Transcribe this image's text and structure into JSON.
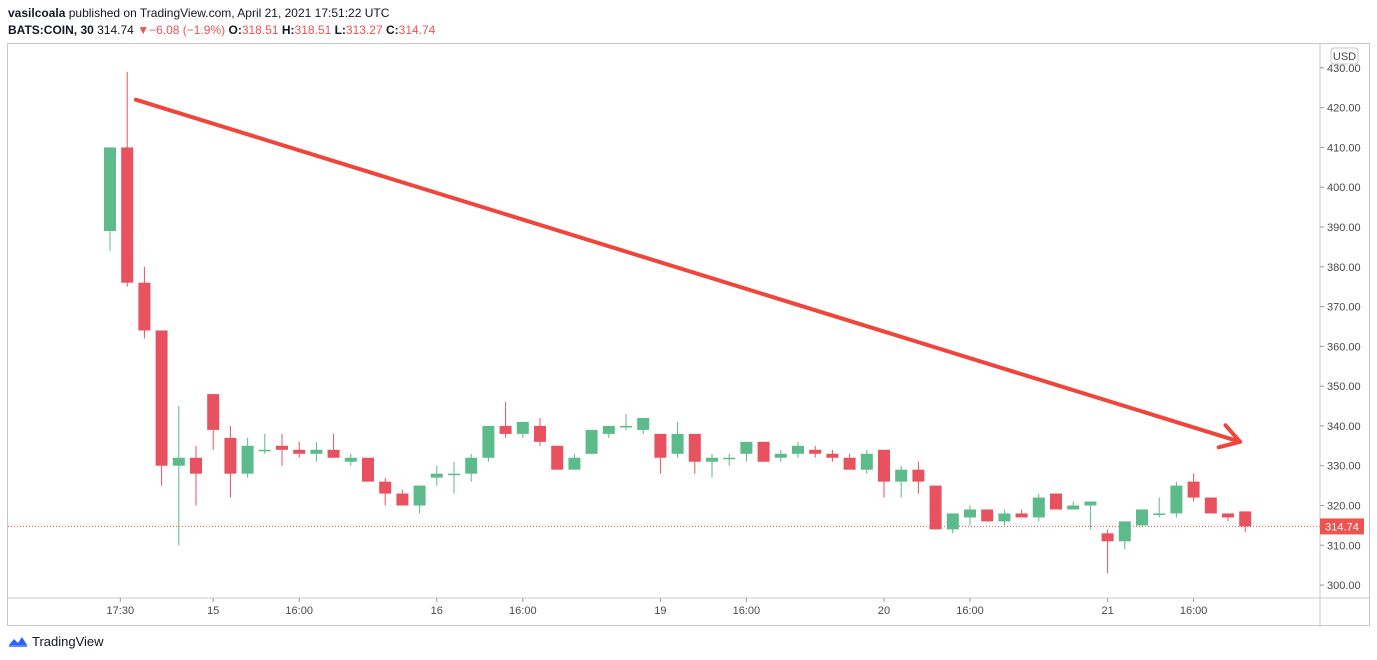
{
  "header": {
    "author": "vasilcoala",
    "published_text": "published on TradingView.com, April 21, 2021 17:51:22 UTC",
    "symbol": "BATS:COIN, 30",
    "last_price": "314.74",
    "change_arrow": "▼",
    "change_text": "−6.08 (−1.9%)",
    "o_label": "O:",
    "o_value": "318.51",
    "h_label": "H:",
    "h_value": "318.51",
    "l_label": "L:",
    "l_value": "313.27",
    "c_label": "C:",
    "c_value": "314.74"
  },
  "footer": {
    "brand": "TradingView"
  },
  "colors": {
    "up": "#26a69a",
    "up_body": "#5dba8a",
    "down": "#ef5350",
    "down_body": "#e8525f",
    "arrow": "#f0453a",
    "price_line": "#ef5350"
  },
  "chart_data": {
    "type": "candlestick",
    "currency_label": "USD",
    "current_price_label": "314.74",
    "current_price": 314.74,
    "y_ticks": [
      "430.00",
      "420.00",
      "410.00",
      "400.00",
      "390.00",
      "380.00",
      "370.00",
      "360.00",
      "350.00",
      "340.00",
      "330.00",
      "320.00",
      "310.00",
      "300.00"
    ],
    "ylim": [
      297,
      436
    ],
    "x_ticks": [
      {
        "label": "17:30",
        "index": 0.6
      },
      {
        "label": "15",
        "index": 6
      },
      {
        "label": "16:00",
        "index": 11
      },
      {
        "label": "16",
        "index": 19
      },
      {
        "label": "16:00",
        "index": 24
      },
      {
        "label": "19",
        "index": 32
      },
      {
        "label": "16:00",
        "index": 37
      },
      {
        "label": "20",
        "index": 45
      },
      {
        "label": "16:00",
        "index": 50
      },
      {
        "label": "21",
        "index": 58
      },
      {
        "label": "16:00",
        "index": 63
      }
    ],
    "candles": [
      {
        "o": 389,
        "h": 410,
        "l": 384,
        "c": 410
      },
      {
        "o": 410,
        "h": 429,
        "l": 375,
        "c": 376
      },
      {
        "o": 376,
        "h": 380,
        "l": 362,
        "c": 364
      },
      {
        "o": 364,
        "h": 364,
        "l": 325,
        "c": 330
      },
      {
        "o": 330,
        "h": 345,
        "l": 310,
        "c": 332
      },
      {
        "o": 332,
        "h": 335,
        "l": 320,
        "c": 328
      },
      {
        "o": 348,
        "h": 348,
        "l": 334,
        "c": 339
      },
      {
        "o": 337,
        "h": 340,
        "l": 322,
        "c": 328
      },
      {
        "o": 328,
        "h": 337,
        "l": 327,
        "c": 335
      },
      {
        "o": 334,
        "h": 338,
        "l": 333,
        "c": 334
      },
      {
        "o": 335,
        "h": 338,
        "l": 330,
        "c": 334
      },
      {
        "o": 334,
        "h": 336,
        "l": 332,
        "c": 333
      },
      {
        "o": 333,
        "h": 336,
        "l": 331,
        "c": 334
      },
      {
        "o": 334,
        "h": 338,
        "l": 332,
        "c": 332
      },
      {
        "o": 331,
        "h": 333,
        "l": 330,
        "c": 332
      },
      {
        "o": 332,
        "h": 332,
        "l": 326,
        "c": 326
      },
      {
        "o": 326,
        "h": 327,
        "l": 320,
        "c": 323
      },
      {
        "o": 323,
        "h": 324,
        "l": 320,
        "c": 320
      },
      {
        "o": 320,
        "h": 325,
        "l": 318,
        "c": 325
      },
      {
        "o": 327,
        "h": 330,
        "l": 325,
        "c": 328
      },
      {
        "o": 328,
        "h": 331,
        "l": 323,
        "c": 328
      },
      {
        "o": 328,
        "h": 333,
        "l": 326,
        "c": 332
      },
      {
        "o": 332,
        "h": 340,
        "l": 331,
        "c": 340
      },
      {
        "o": 340,
        "h": 346,
        "l": 337,
        "c": 338
      },
      {
        "o": 338,
        "h": 341,
        "l": 337,
        "c": 341
      },
      {
        "o": 340,
        "h": 342,
        "l": 335,
        "c": 336
      },
      {
        "o": 335,
        "h": 335,
        "l": 329,
        "c": 329
      },
      {
        "o": 329,
        "h": 333,
        "l": 329,
        "c": 332
      },
      {
        "o": 333,
        "h": 339,
        "l": 333,
        "c": 339
      },
      {
        "o": 338,
        "h": 340,
        "l": 337,
        "c": 340
      },
      {
        "o": 340,
        "h": 343,
        "l": 339,
        "c": 340
      },
      {
        "o": 339,
        "h": 342,
        "l": 338,
        "c": 342
      },
      {
        "o": 338,
        "h": 338,
        "l": 328,
        "c": 332
      },
      {
        "o": 333,
        "h": 341,
        "l": 332,
        "c": 338
      },
      {
        "o": 338,
        "h": 338,
        "l": 328,
        "c": 331
      },
      {
        "o": 331,
        "h": 333,
        "l": 327,
        "c": 332
      },
      {
        "o": 332,
        "h": 333,
        "l": 330,
        "c": 332
      },
      {
        "o": 333,
        "h": 336,
        "l": 331,
        "c": 336
      },
      {
        "o": 336,
        "h": 336,
        "l": 331,
        "c": 331
      },
      {
        "o": 332,
        "h": 334,
        "l": 331,
        "c": 333
      },
      {
        "o": 333,
        "h": 336,
        "l": 332,
        "c": 335
      },
      {
        "o": 334,
        "h": 335,
        "l": 332,
        "c": 333
      },
      {
        "o": 333,
        "h": 334,
        "l": 331,
        "c": 332
      },
      {
        "o": 332,
        "h": 333,
        "l": 329,
        "c": 329
      },
      {
        "o": 329,
        "h": 334,
        "l": 328,
        "c": 333
      },
      {
        "o": 334,
        "h": 334,
        "l": 322,
        "c": 326
      },
      {
        "o": 326,
        "h": 330,
        "l": 322,
        "c": 329
      },
      {
        "o": 329,
        "h": 331,
        "l": 323,
        "c": 326
      },
      {
        "o": 325,
        "h": 325,
        "l": 314,
        "c": 314
      },
      {
        "o": 314,
        "h": 318,
        "l": 313,
        "c": 318
      },
      {
        "o": 317,
        "h": 320,
        "l": 315,
        "c": 319
      },
      {
        "o": 319,
        "h": 319,
        "l": 316,
        "c": 316
      },
      {
        "o": 316,
        "h": 319,
        "l": 315,
        "c": 318
      },
      {
        "o": 318,
        "h": 319,
        "l": 317,
        "c": 317
      },
      {
        "o": 317,
        "h": 323,
        "l": 316,
        "c": 322
      },
      {
        "o": 323,
        "h": 323,
        "l": 319,
        "c": 319
      },
      {
        "o": 319,
        "h": 321,
        "l": 319,
        "c": 320
      },
      {
        "o": 320,
        "h": 321,
        "l": 314,
        "c": 321
      },
      {
        "o": 313,
        "h": 314,
        "l": 303,
        "c": 311
      },
      {
        "o": 311,
        "h": 316,
        "l": 309,
        "c": 316
      },
      {
        "o": 315,
        "h": 319,
        "l": 315,
        "c": 319
      },
      {
        "o": 318,
        "h": 322,
        "l": 317,
        "c": 318
      },
      {
        "o": 318,
        "h": 326,
        "l": 317,
        "c": 325
      },
      {
        "o": 326,
        "h": 328,
        "l": 321,
        "c": 322
      },
      {
        "o": 322,
        "h": 322,
        "l": 318,
        "c": 318
      },
      {
        "o": 318,
        "h": 318,
        "l": 316,
        "c": 317
      },
      {
        "o": 318.51,
        "h": 318.51,
        "l": 313.27,
        "c": 314.74
      }
    ],
    "trend_arrow": {
      "start": {
        "index": 1.5,
        "price": 422
      },
      "end": {
        "index": 65.7,
        "price": 336
      }
    }
  }
}
